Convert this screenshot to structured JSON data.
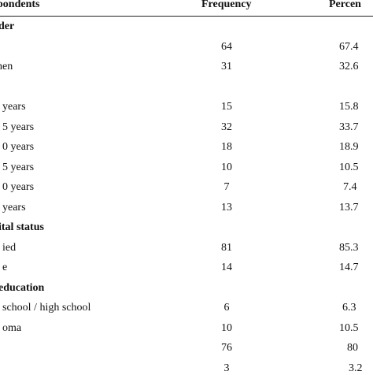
{
  "header": {
    "col_respondents": "pondents",
    "col_frequency": "Frequency",
    "col_percent": "Percen"
  },
  "sections": [
    {
      "title": "der"
    },
    {
      "title": ""
    },
    {
      "title": "ital status"
    },
    {
      "title": "education"
    }
  ],
  "rows": [
    {
      "label": "",
      "frequency": "64",
      "percent": "67.4"
    },
    {
      "label": "nen",
      "frequency": "31",
      "percent": "32.6"
    },
    {
      "label": "years",
      "frequency": "15",
      "percent": "15.8"
    },
    {
      "label": "5 years",
      "frequency": "32",
      "percent": "33.7"
    },
    {
      "label": "0 years",
      "frequency": "18",
      "percent": "18.9"
    },
    {
      "label": "5 years",
      "frequency": "10",
      "percent": "10.5"
    },
    {
      "label": "0 years",
      "frequency": "7",
      "percent": "7.4"
    },
    {
      "label": "years",
      "frequency": "13",
      "percent": "13.7"
    },
    {
      "label": "ied",
      "frequency": "81",
      "percent": "85.3"
    },
    {
      "label": "e",
      "frequency": "14",
      "percent": "14.7"
    },
    {
      "label": "school / high school",
      "frequency": "6",
      "percent": "6.3"
    },
    {
      "label": "oma",
      "frequency": "10",
      "percent": "10.5"
    },
    {
      "label": "",
      "frequency": "76",
      "percent": "80"
    },
    {
      "label": "",
      "frequency": "3",
      "percent": "3.2"
    }
  ]
}
